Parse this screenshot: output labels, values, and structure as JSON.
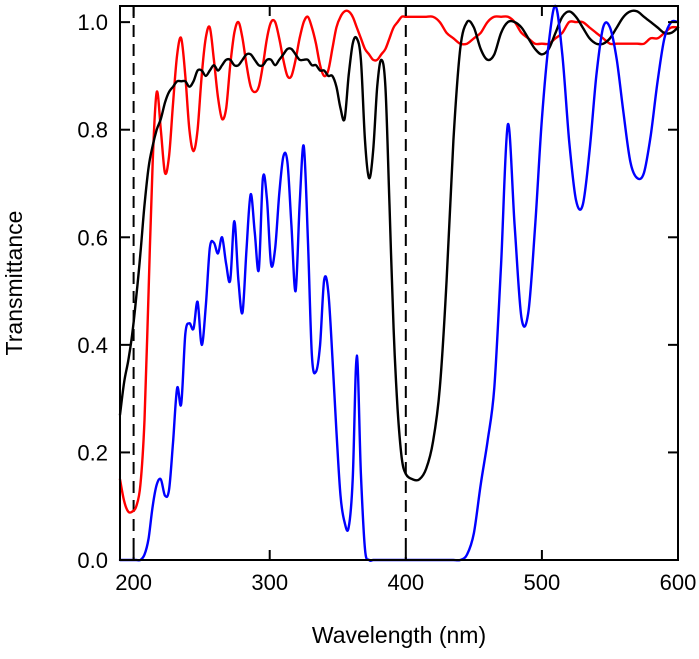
{
  "chart_data": {
    "type": "line",
    "title": "",
    "xlabel": "Wavelength (nm)",
    "ylabel": "Transmittance",
    "xlim": [
      190,
      600
    ],
    "ylim": [
      0,
      1.03
    ],
    "xticks": [
      200,
      300,
      400,
      500,
      600
    ],
    "xtick_labels": [
      "200",
      "300",
      "400",
      "500",
      "600"
    ],
    "yticks": [
      0,
      0.2,
      0.4,
      0.6,
      0.8,
      1.0
    ],
    "ytick_labels": [
      "0.0",
      "0.2",
      "0.4",
      "0.6",
      "0.8",
      "1.0"
    ],
    "grid": false,
    "legend": "none",
    "reference_lines": [
      {
        "axis": "x",
        "value": 200,
        "style": "dashed"
      },
      {
        "axis": "x",
        "value": 400,
        "style": "dashed"
      }
    ],
    "series": [
      {
        "name": "red",
        "color": "#ff0000",
        "x": [
          190,
          193,
          196,
          199,
          202,
          205,
          208,
          211,
          214,
          217,
          220,
          223,
          226,
          229,
          232,
          235,
          238,
          241,
          244,
          247,
          250,
          253,
          256,
          259,
          262,
          265,
          268,
          271,
          274,
          277,
          280,
          283,
          286,
          289,
          292,
          295,
          298,
          301,
          304,
          307,
          310,
          313,
          316,
          319,
          322,
          325,
          328,
          331,
          334,
          337,
          340,
          343,
          346,
          349,
          352,
          355,
          358,
          361,
          364,
          367,
          370,
          373,
          376,
          379,
          382,
          385,
          388,
          391,
          394,
          397,
          400,
          405,
          410,
          415,
          420,
          425,
          430,
          435,
          440,
          445,
          450,
          455,
          460,
          465,
          470,
          475,
          480,
          485,
          490,
          495,
          500,
          505,
          510,
          515,
          520,
          525,
          530,
          535,
          540,
          545,
          550,
          555,
          560,
          565,
          570,
          575,
          580,
          585,
          590,
          595,
          600
        ],
        "y": [
          0.15,
          0.11,
          0.09,
          0.09,
          0.1,
          0.14,
          0.26,
          0.5,
          0.74,
          0.87,
          0.8,
          0.72,
          0.75,
          0.85,
          0.94,
          0.97,
          0.9,
          0.8,
          0.76,
          0.8,
          0.9,
          0.97,
          0.99,
          0.93,
          0.86,
          0.82,
          0.84,
          0.92,
          0.98,
          1.0,
          0.97,
          0.92,
          0.88,
          0.87,
          0.88,
          0.92,
          0.97,
          1.0,
          1.0,
          0.97,
          0.93,
          0.9,
          0.9,
          0.93,
          0.97,
          1.0,
          1.01,
          0.99,
          0.96,
          0.92,
          0.9,
          0.91,
          0.95,
          0.99,
          1.01,
          1.02,
          1.02,
          1.01,
          0.99,
          0.97,
          0.95,
          0.94,
          0.93,
          0.93,
          0.94,
          0.95,
          0.97,
          0.99,
          1.0,
          1.01,
          1.01,
          1.01,
          1.01,
          1.01,
          1.01,
          1.0,
          0.98,
          0.97,
          0.96,
          0.96,
          0.97,
          0.98,
          1.0,
          1.01,
          1.01,
          1.01,
          1.0,
          0.98,
          0.97,
          0.96,
          0.96,
          0.96,
          0.97,
          0.98,
          1.0,
          1.0,
          1.0,
          0.99,
          0.98,
          0.97,
          0.96,
          0.96,
          0.96,
          0.96,
          0.96,
          0.96,
          0.97,
          0.97,
          0.98,
          0.99,
          0.99
        ]
      },
      {
        "name": "black",
        "color": "#000000",
        "x": [
          190,
          193,
          196,
          199,
          202,
          205,
          208,
          211,
          214,
          217,
          220,
          223,
          226,
          229,
          232,
          235,
          238,
          241,
          244,
          247,
          250,
          253,
          256,
          259,
          262,
          265,
          268,
          271,
          274,
          277,
          280,
          283,
          286,
          289,
          292,
          295,
          298,
          301,
          304,
          307,
          310,
          313,
          316,
          319,
          322,
          325,
          328,
          331,
          334,
          337,
          340,
          343,
          346,
          349,
          352,
          355,
          358,
          361,
          364,
          367,
          370,
          373,
          376,
          379,
          382,
          385,
          388,
          391,
          394,
          397,
          400,
          405,
          410,
          415,
          420,
          425,
          430,
          435,
          440,
          445,
          450,
          455,
          460,
          465,
          470,
          475,
          480,
          485,
          490,
          495,
          500,
          505,
          510,
          515,
          520,
          525,
          530,
          535,
          540,
          545,
          550,
          555,
          560,
          565,
          570,
          575,
          580,
          585,
          590,
          595,
          600
        ],
        "y": [
          0.27,
          0.33,
          0.37,
          0.42,
          0.49,
          0.57,
          0.66,
          0.73,
          0.77,
          0.8,
          0.82,
          0.85,
          0.87,
          0.88,
          0.89,
          0.89,
          0.89,
          0.88,
          0.89,
          0.91,
          0.91,
          0.9,
          0.91,
          0.92,
          0.91,
          0.92,
          0.93,
          0.93,
          0.92,
          0.92,
          0.93,
          0.94,
          0.94,
          0.93,
          0.92,
          0.92,
          0.93,
          0.93,
          0.92,
          0.93,
          0.94,
          0.95,
          0.95,
          0.94,
          0.93,
          0.93,
          0.93,
          0.92,
          0.92,
          0.91,
          0.91,
          0.9,
          0.9,
          0.88,
          0.84,
          0.82,
          0.9,
          0.96,
          0.97,
          0.93,
          0.78,
          0.71,
          0.76,
          0.88,
          0.93,
          0.88,
          0.66,
          0.43,
          0.28,
          0.19,
          0.16,
          0.15,
          0.15,
          0.17,
          0.22,
          0.32,
          0.52,
          0.78,
          0.95,
          1.0,
          0.99,
          0.95,
          0.93,
          0.94,
          0.98,
          1.0,
          1.0,
          0.99,
          0.97,
          0.95,
          0.94,
          0.95,
          0.98,
          1.01,
          1.02,
          1.01,
          0.99,
          0.97,
          0.96,
          0.96,
          0.97,
          0.99,
          1.01,
          1.02,
          1.02,
          1.01,
          1.0,
          0.99,
          0.98,
          0.98,
          0.99
        ]
      },
      {
        "name": "blue",
        "color": "#0000ff",
        "x": [
          190,
          193,
          196,
          199,
          202,
          205,
          208,
          211,
          214,
          217,
          220,
          223,
          226,
          229,
          232,
          235,
          238,
          241,
          244,
          247,
          250,
          253,
          256,
          259,
          262,
          265,
          268,
          271,
          274,
          277,
          280,
          283,
          286,
          289,
          292,
          295,
          298,
          301,
          304,
          307,
          310,
          313,
          316,
          319,
          322,
          325,
          328,
          331,
          334,
          337,
          340,
          343,
          346,
          349,
          352,
          355,
          358,
          361,
          364,
          367,
          370,
          373,
          376,
          379,
          382,
          385,
          388,
          391,
          394,
          397,
          400,
          405,
          410,
          415,
          420,
          425,
          430,
          435,
          440,
          445,
          450,
          455,
          460,
          465,
          470,
          475,
          480,
          485,
          490,
          495,
          500,
          505,
          510,
          515,
          520,
          525,
          530,
          535,
          540,
          545,
          550,
          555,
          560,
          565,
          570,
          575,
          580,
          585,
          590,
          595,
          600
        ],
        "y": [
          0.0,
          0.0,
          0.0,
          0.0,
          0.0,
          0.0,
          0.01,
          0.04,
          0.1,
          0.14,
          0.15,
          0.12,
          0.13,
          0.22,
          0.32,
          0.29,
          0.42,
          0.44,
          0.43,
          0.48,
          0.4,
          0.47,
          0.58,
          0.59,
          0.57,
          0.6,
          0.55,
          0.52,
          0.63,
          0.52,
          0.46,
          0.58,
          0.68,
          0.61,
          0.54,
          0.71,
          0.67,
          0.55,
          0.58,
          0.68,
          0.75,
          0.74,
          0.62,
          0.5,
          0.66,
          0.77,
          0.6,
          0.38,
          0.35,
          0.4,
          0.52,
          0.5,
          0.38,
          0.24,
          0.12,
          0.07,
          0.06,
          0.15,
          0.38,
          0.16,
          0.02,
          0.0,
          0.0,
          0.0,
          0.0,
          0.0,
          0.0,
          0.0,
          0.0,
          0.0,
          0.0,
          0.0,
          0.0,
          0.0,
          0.0,
          0.0,
          0.0,
          0.0,
          0.0,
          0.01,
          0.05,
          0.14,
          0.22,
          0.32,
          0.55,
          0.81,
          0.62,
          0.45,
          0.46,
          0.62,
          0.82,
          0.96,
          1.03,
          0.94,
          0.78,
          0.67,
          0.66,
          0.76,
          0.9,
          0.99,
          0.99,
          0.93,
          0.83,
          0.74,
          0.71,
          0.72,
          0.79,
          0.89,
          0.97,
          1.0,
          1.0
        ]
      }
    ]
  }
}
